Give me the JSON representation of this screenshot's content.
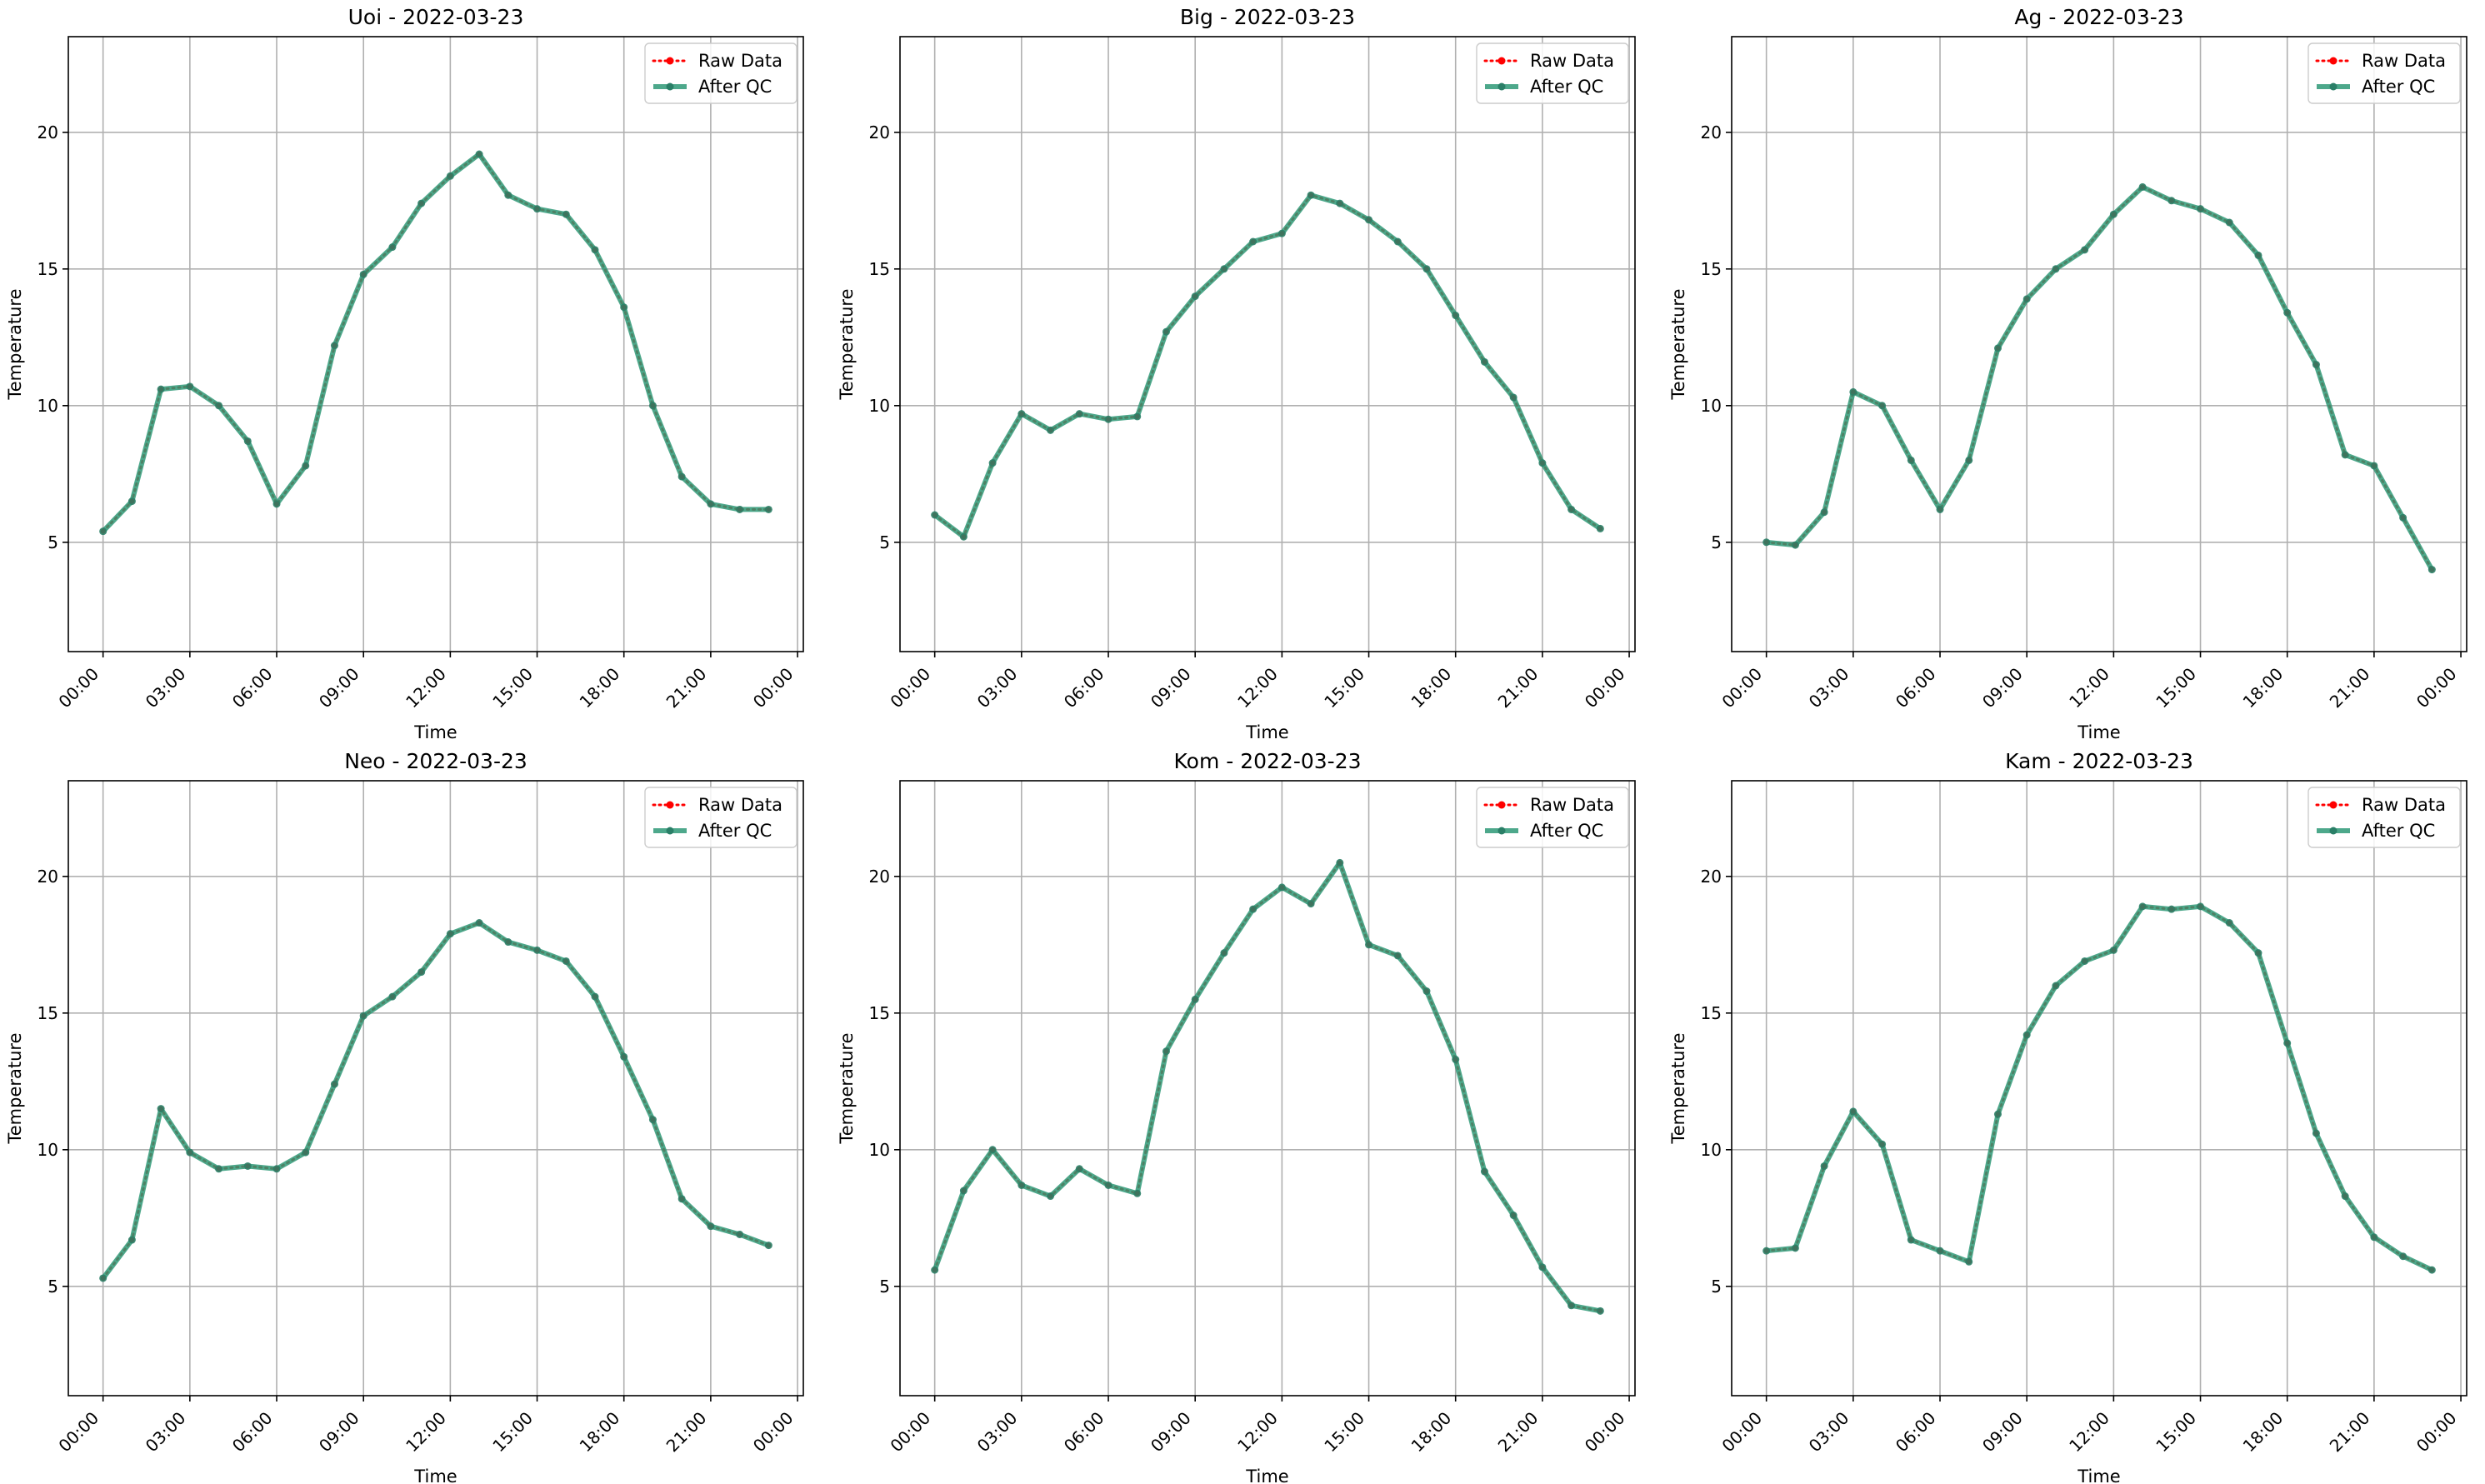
{
  "chart_data": [
    {
      "type": "line",
      "title": "Uoi - 2022-03-23",
      "xlabel": "Time",
      "ylabel": "Temperature",
      "ylim": [
        1,
        23.5
      ],
      "yticks": [
        5,
        10,
        15,
        20
      ],
      "xticks": [
        "00:00",
        "03:00",
        "06:00",
        "09:00",
        "12:00",
        "15:00",
        "18:00",
        "21:00",
        "00:00"
      ],
      "xlim_hours": [
        -1.2,
        24.2
      ],
      "grid": true,
      "legend_position": "top-right",
      "series": [
        {
          "name": "Raw Data",
          "color": "#ff0000",
          "style": "dotted",
          "x_hours": [
            0,
            1,
            2,
            3,
            4,
            5,
            6,
            7,
            8,
            9,
            10,
            11,
            12,
            13,
            14,
            15,
            16,
            17,
            18,
            19,
            20,
            21,
            22,
            23
          ],
          "y": [
            5.4,
            6.5,
            10.6,
            10.7,
            10.0,
            8.7,
            6.4,
            7.8,
            12.2,
            14.8,
            15.8,
            17.4,
            18.4,
            19.2,
            17.7,
            17.2,
            17.0,
            15.7,
            13.6,
            10.0,
            7.4,
            6.4,
            6.2,
            6.2
          ]
        },
        {
          "name": "After QC",
          "color": "#2e9977",
          "style": "solid",
          "x_hours": [
            0,
            1,
            2,
            3,
            4,
            5,
            6,
            7,
            8,
            9,
            10,
            11,
            12,
            13,
            14,
            15,
            16,
            17,
            18,
            19,
            20,
            21,
            22,
            23
          ],
          "y": [
            5.4,
            6.5,
            10.6,
            10.7,
            10.0,
            8.7,
            6.4,
            7.8,
            12.2,
            14.8,
            15.8,
            17.4,
            18.4,
            19.2,
            17.7,
            17.2,
            17.0,
            15.7,
            13.6,
            10.0,
            7.4,
            6.4,
            6.2,
            6.2
          ]
        }
      ]
    },
    {
      "type": "line",
      "title": "Big - 2022-03-23",
      "xlabel": "Time",
      "ylabel": "Temperature",
      "ylim": [
        1,
        23.5
      ],
      "yticks": [
        5,
        10,
        15,
        20
      ],
      "xticks": [
        "00:00",
        "03:00",
        "06:00",
        "09:00",
        "12:00",
        "15:00",
        "18:00",
        "21:00",
        "00:00"
      ],
      "xlim_hours": [
        -1.2,
        24.2
      ],
      "grid": true,
      "legend_position": "top-right",
      "series": [
        {
          "name": "Raw Data",
          "color": "#ff0000",
          "style": "dotted",
          "x_hours": [
            0,
            1,
            2,
            3,
            4,
            5,
            6,
            7,
            8,
            9,
            10,
            11,
            12,
            13,
            14,
            15,
            16,
            17,
            18,
            19,
            20,
            21,
            22,
            23
          ],
          "y": [
            6.0,
            5.2,
            7.9,
            9.7,
            9.1,
            9.7,
            9.5,
            9.6,
            12.7,
            14.0,
            15.0,
            16.0,
            16.3,
            17.7,
            17.4,
            16.8,
            16.0,
            15.0,
            13.3,
            11.6,
            10.3,
            7.9,
            6.2,
            5.5
          ]
        },
        {
          "name": "After QC",
          "color": "#2e9977",
          "style": "solid",
          "x_hours": [
            0,
            1,
            2,
            3,
            4,
            5,
            6,
            7,
            8,
            9,
            10,
            11,
            12,
            13,
            14,
            15,
            16,
            17,
            18,
            19,
            20,
            21,
            22,
            23
          ],
          "y": [
            6.0,
            5.2,
            7.9,
            9.7,
            9.1,
            9.7,
            9.5,
            9.6,
            12.7,
            14.0,
            15.0,
            16.0,
            16.3,
            17.7,
            17.4,
            16.8,
            16.0,
            15.0,
            13.3,
            11.6,
            10.3,
            7.9,
            6.2,
            5.5
          ]
        }
      ]
    },
    {
      "type": "line",
      "title": "Ag - 2022-03-23",
      "xlabel": "Time",
      "ylabel": "Temperature",
      "ylim": [
        1,
        23.5
      ],
      "yticks": [
        5,
        10,
        15,
        20
      ],
      "xticks": [
        "00:00",
        "03:00",
        "06:00",
        "09:00",
        "12:00",
        "15:00",
        "18:00",
        "21:00",
        "00:00"
      ],
      "xlim_hours": [
        -1.2,
        24.2
      ],
      "grid": true,
      "legend_position": "top-right",
      "series": [
        {
          "name": "Raw Data",
          "color": "#ff0000",
          "style": "dotted",
          "x_hours": [
            0,
            1,
            2,
            3,
            4,
            5,
            6,
            7,
            8,
            9,
            10,
            11,
            12,
            13,
            14,
            15,
            16,
            17,
            18,
            19,
            20,
            21,
            22,
            23
          ],
          "y": [
            5.0,
            4.9,
            6.1,
            10.5,
            10.0,
            8.0,
            6.2,
            8.0,
            12.1,
            13.9,
            15.0,
            15.7,
            17.0,
            18.0,
            17.5,
            17.2,
            16.7,
            15.5,
            13.4,
            11.5,
            8.2,
            7.8,
            5.9,
            4.0
          ]
        },
        {
          "name": "After QC",
          "color": "#2e9977",
          "style": "solid",
          "x_hours": [
            0,
            1,
            2,
            3,
            4,
            5,
            6,
            7,
            8,
            9,
            10,
            11,
            12,
            13,
            14,
            15,
            16,
            17,
            18,
            19,
            20,
            21,
            22,
            23
          ],
          "y": [
            5.0,
            4.9,
            6.1,
            10.5,
            10.0,
            8.0,
            6.2,
            8.0,
            12.1,
            13.9,
            15.0,
            15.7,
            17.0,
            18.0,
            17.5,
            17.2,
            16.7,
            15.5,
            13.4,
            11.5,
            8.2,
            7.8,
            5.9,
            4.0
          ]
        }
      ]
    },
    {
      "type": "line",
      "title": "Neo - 2022-03-23",
      "xlabel": "Time",
      "ylabel": "Temperature",
      "ylim": [
        1,
        23.5
      ],
      "yticks": [
        5,
        10,
        15,
        20
      ],
      "xticks": [
        "00:00",
        "03:00",
        "06:00",
        "09:00",
        "12:00",
        "15:00",
        "18:00",
        "21:00",
        "00:00"
      ],
      "xlim_hours": [
        -1.2,
        24.2
      ],
      "grid": true,
      "legend_position": "top-right",
      "series": [
        {
          "name": "Raw Data",
          "color": "#ff0000",
          "style": "dotted",
          "x_hours": [
            0,
            1,
            2,
            3,
            4,
            5,
            6,
            7,
            8,
            9,
            10,
            11,
            12,
            13,
            14,
            15,
            16,
            17,
            18,
            19,
            20,
            21,
            22,
            23
          ],
          "y": [
            5.3,
            6.7,
            11.5,
            9.9,
            9.3,
            9.4,
            9.3,
            9.9,
            12.4,
            14.9,
            15.6,
            16.5,
            17.9,
            18.3,
            17.6,
            17.3,
            16.9,
            15.6,
            13.4,
            11.1,
            8.2,
            7.2,
            6.9,
            6.5
          ]
        },
        {
          "name": "After QC",
          "color": "#2e9977",
          "style": "solid",
          "x_hours": [
            0,
            1,
            2,
            3,
            4,
            5,
            6,
            7,
            8,
            9,
            10,
            11,
            12,
            13,
            14,
            15,
            16,
            17,
            18,
            19,
            20,
            21,
            22,
            23
          ],
          "y": [
            5.3,
            6.7,
            11.5,
            9.9,
            9.3,
            9.4,
            9.3,
            9.9,
            12.4,
            14.9,
            15.6,
            16.5,
            17.9,
            18.3,
            17.6,
            17.3,
            16.9,
            15.6,
            13.4,
            11.1,
            8.2,
            7.2,
            6.9,
            6.5
          ]
        }
      ]
    },
    {
      "type": "line",
      "title": "Kom - 2022-03-23",
      "xlabel": "Time",
      "ylabel": "Temperature",
      "ylim": [
        1,
        23.5
      ],
      "yticks": [
        5,
        10,
        15,
        20
      ],
      "xticks": [
        "00:00",
        "03:00",
        "06:00",
        "09:00",
        "12:00",
        "15:00",
        "18:00",
        "21:00",
        "00:00"
      ],
      "xlim_hours": [
        -1.2,
        24.2
      ],
      "grid": true,
      "legend_position": "top-right",
      "series": [
        {
          "name": "Raw Data",
          "color": "#ff0000",
          "style": "dotted",
          "x_hours": [
            0,
            1,
            2,
            3,
            4,
            5,
            6,
            7,
            8,
            9,
            10,
            11,
            12,
            13,
            14,
            15,
            16,
            17,
            18,
            19,
            20,
            21,
            22,
            23
          ],
          "y": [
            5.6,
            8.5,
            10.0,
            8.7,
            8.3,
            9.3,
            8.7,
            8.4,
            13.6,
            15.5,
            17.2,
            18.8,
            19.6,
            19.0,
            20.5,
            17.5,
            17.1,
            15.8,
            13.3,
            9.2,
            7.6,
            5.7,
            4.3,
            4.1
          ]
        },
        {
          "name": "After QC",
          "color": "#2e9977",
          "style": "solid",
          "x_hours": [
            0,
            1,
            2,
            3,
            4,
            5,
            6,
            7,
            8,
            9,
            10,
            11,
            12,
            13,
            14,
            15,
            16,
            17,
            18,
            19,
            20,
            21,
            22,
            23
          ],
          "y": [
            5.6,
            8.5,
            10.0,
            8.7,
            8.3,
            9.3,
            8.7,
            8.4,
            13.6,
            15.5,
            17.2,
            18.8,
            19.6,
            19.0,
            20.5,
            17.5,
            17.1,
            15.8,
            13.3,
            9.2,
            7.6,
            5.7,
            4.3,
            4.1
          ]
        }
      ]
    },
    {
      "type": "line",
      "title": "Kam - 2022-03-23",
      "xlabel": "Time",
      "ylabel": "Temperature",
      "ylim": [
        1,
        23.5
      ],
      "yticks": [
        5,
        10,
        15,
        20
      ],
      "xticks": [
        "00:00",
        "03:00",
        "06:00",
        "09:00",
        "12:00",
        "15:00",
        "18:00",
        "21:00",
        "00:00"
      ],
      "xlim_hours": [
        -1.2,
        24.2
      ],
      "grid": true,
      "legend_position": "top-right",
      "series": [
        {
          "name": "Raw Data",
          "color": "#ff0000",
          "style": "dotted",
          "x_hours": [
            0,
            1,
            2,
            3,
            4,
            5,
            6,
            7,
            8,
            9,
            10,
            11,
            12,
            13,
            14,
            15,
            16,
            17,
            18,
            19,
            20,
            21,
            22,
            23
          ],
          "y": [
            6.3,
            6.4,
            9.4,
            11.4,
            10.2,
            6.7,
            6.3,
            5.9,
            11.3,
            14.2,
            16.0,
            16.9,
            17.3,
            18.9,
            18.8,
            18.9,
            18.3,
            17.2,
            13.9,
            10.6,
            8.3,
            6.8,
            6.1,
            5.6
          ]
        },
        {
          "name": "After QC",
          "color": "#2e9977",
          "style": "solid",
          "x_hours": [
            0,
            1,
            2,
            3,
            4,
            5,
            6,
            7,
            8,
            9,
            10,
            11,
            12,
            13,
            14,
            15,
            16,
            17,
            18,
            19,
            20,
            21,
            22,
            23
          ],
          "y": [
            6.3,
            6.4,
            9.4,
            11.4,
            10.2,
            6.7,
            6.3,
            5.9,
            11.3,
            14.2,
            16.0,
            16.9,
            17.3,
            18.9,
            18.8,
            18.9,
            18.3,
            17.2,
            13.9,
            10.6,
            8.3,
            6.8,
            6.1,
            5.6
          ]
        }
      ]
    }
  ]
}
